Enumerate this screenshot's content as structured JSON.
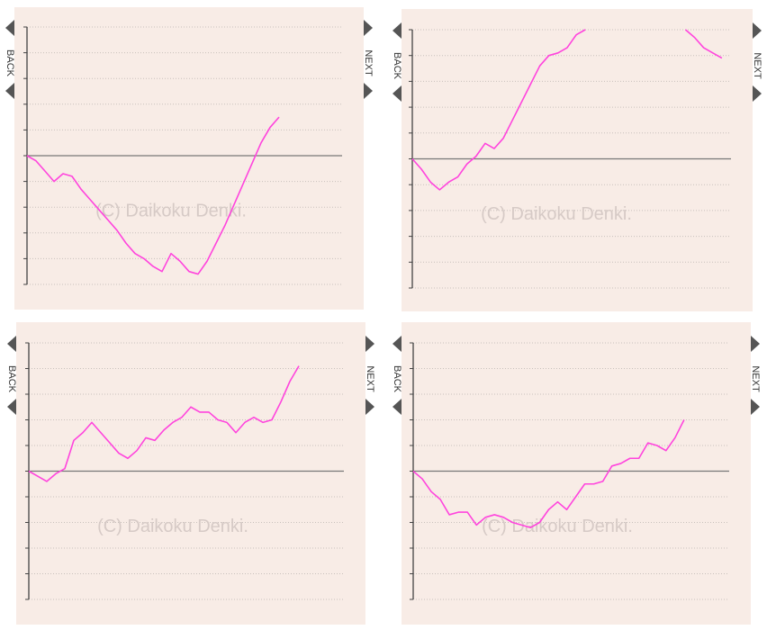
{
  "chart_data": [
    {
      "type": "line",
      "back_label": "BACK",
      "next_label": "NEXT",
      "watermark": "(C) Daikoku Denki.",
      "color": "#ff44dd",
      "grid": true,
      "xlim": [
        0,
        35
      ],
      "ylim": [
        -5,
        5
      ],
      "yticks": [
        -5,
        -4,
        -3,
        -2,
        -1,
        0,
        1,
        2,
        3,
        4,
        5
      ],
      "values": [
        0,
        -0.2,
        -0.6,
        -1.0,
        -0.7,
        -0.8,
        -1.3,
        -1.7,
        -2.1,
        -2.5,
        -2.9,
        -3.4,
        -3.8,
        -4.0,
        -4.3,
        -4.5,
        -3.8,
        -4.1,
        -4.5,
        -4.6,
        -4.1,
        -3.4,
        -2.7,
        -1.9,
        -1.1,
        -0.3,
        0.5,
        1.1,
        1.5
      ]
    },
    {
      "type": "line",
      "back_label": "BACK",
      "next_label": "NEXT",
      "watermark": "(C) Daikoku Denki.",
      "color": "#ff44dd",
      "grid": true,
      "xlim": [
        0,
        35
      ],
      "ylim": [
        -5,
        5
      ],
      "yticks": [
        -5,
        -4,
        -3,
        -2,
        -1,
        0,
        1,
        2,
        3,
        4,
        5
      ],
      "values": [
        0,
        -0.4,
        -0.9,
        -1.2,
        -0.9,
        -0.7,
        -0.2,
        0.1,
        0.6,
        0.4,
        0.8,
        1.5,
        2.2,
        2.9,
        3.6,
        4.0,
        4.1,
        4.3,
        4.8,
        5.0,
        null,
        null,
        null,
        null,
        null,
        null,
        null,
        null,
        null,
        null,
        5.0,
        4.7,
        4.3,
        4.1,
        3.9
      ]
    },
    {
      "type": "line",
      "back_label": "BACK",
      "next_label": "NEXT",
      "watermark": "(C) Daikoku Denki.",
      "color": "#ff44dd",
      "grid": true,
      "xlim": [
        0,
        35
      ],
      "ylim": [
        -5,
        5
      ],
      "yticks": [
        -5,
        -4,
        -3,
        -2,
        -1,
        0,
        1,
        2,
        3,
        4,
        5
      ],
      "values": [
        0,
        -0.2,
        -0.4,
        -0.1,
        0.1,
        1.2,
        1.5,
        1.9,
        1.5,
        1.1,
        0.7,
        0.5,
        0.8,
        1.3,
        1.2,
        1.6,
        1.9,
        2.1,
        2.5,
        2.3,
        2.3,
        2.0,
        1.9,
        1.5,
        1.9,
        2.1,
        1.9,
        2.0,
        2.7,
        3.5,
        4.1
      ]
    },
    {
      "type": "line",
      "back_label": "BACK",
      "next_label": "NEXT",
      "watermark": "(C) Daikoku Denki.",
      "color": "#ff44dd",
      "grid": true,
      "xlim": [
        0,
        35
      ],
      "ylim": [
        -5,
        5
      ],
      "yticks": [
        -5,
        -4,
        -3,
        -2,
        -1,
        0,
        1,
        2,
        3,
        4,
        5
      ],
      "values": [
        0,
        -0.3,
        -0.8,
        -1.1,
        -1.7,
        -1.6,
        -1.6,
        -2.1,
        -1.8,
        -1.7,
        -1.8,
        -2.0,
        -2.1,
        -2.2,
        -2.0,
        -1.5,
        -1.2,
        -1.5,
        -1.0,
        -0.5,
        -0.5,
        -0.4,
        0.2,
        0.3,
        0.5,
        0.5,
        1.1,
        1.0,
        0.8,
        1.3,
        2.0
      ]
    }
  ]
}
